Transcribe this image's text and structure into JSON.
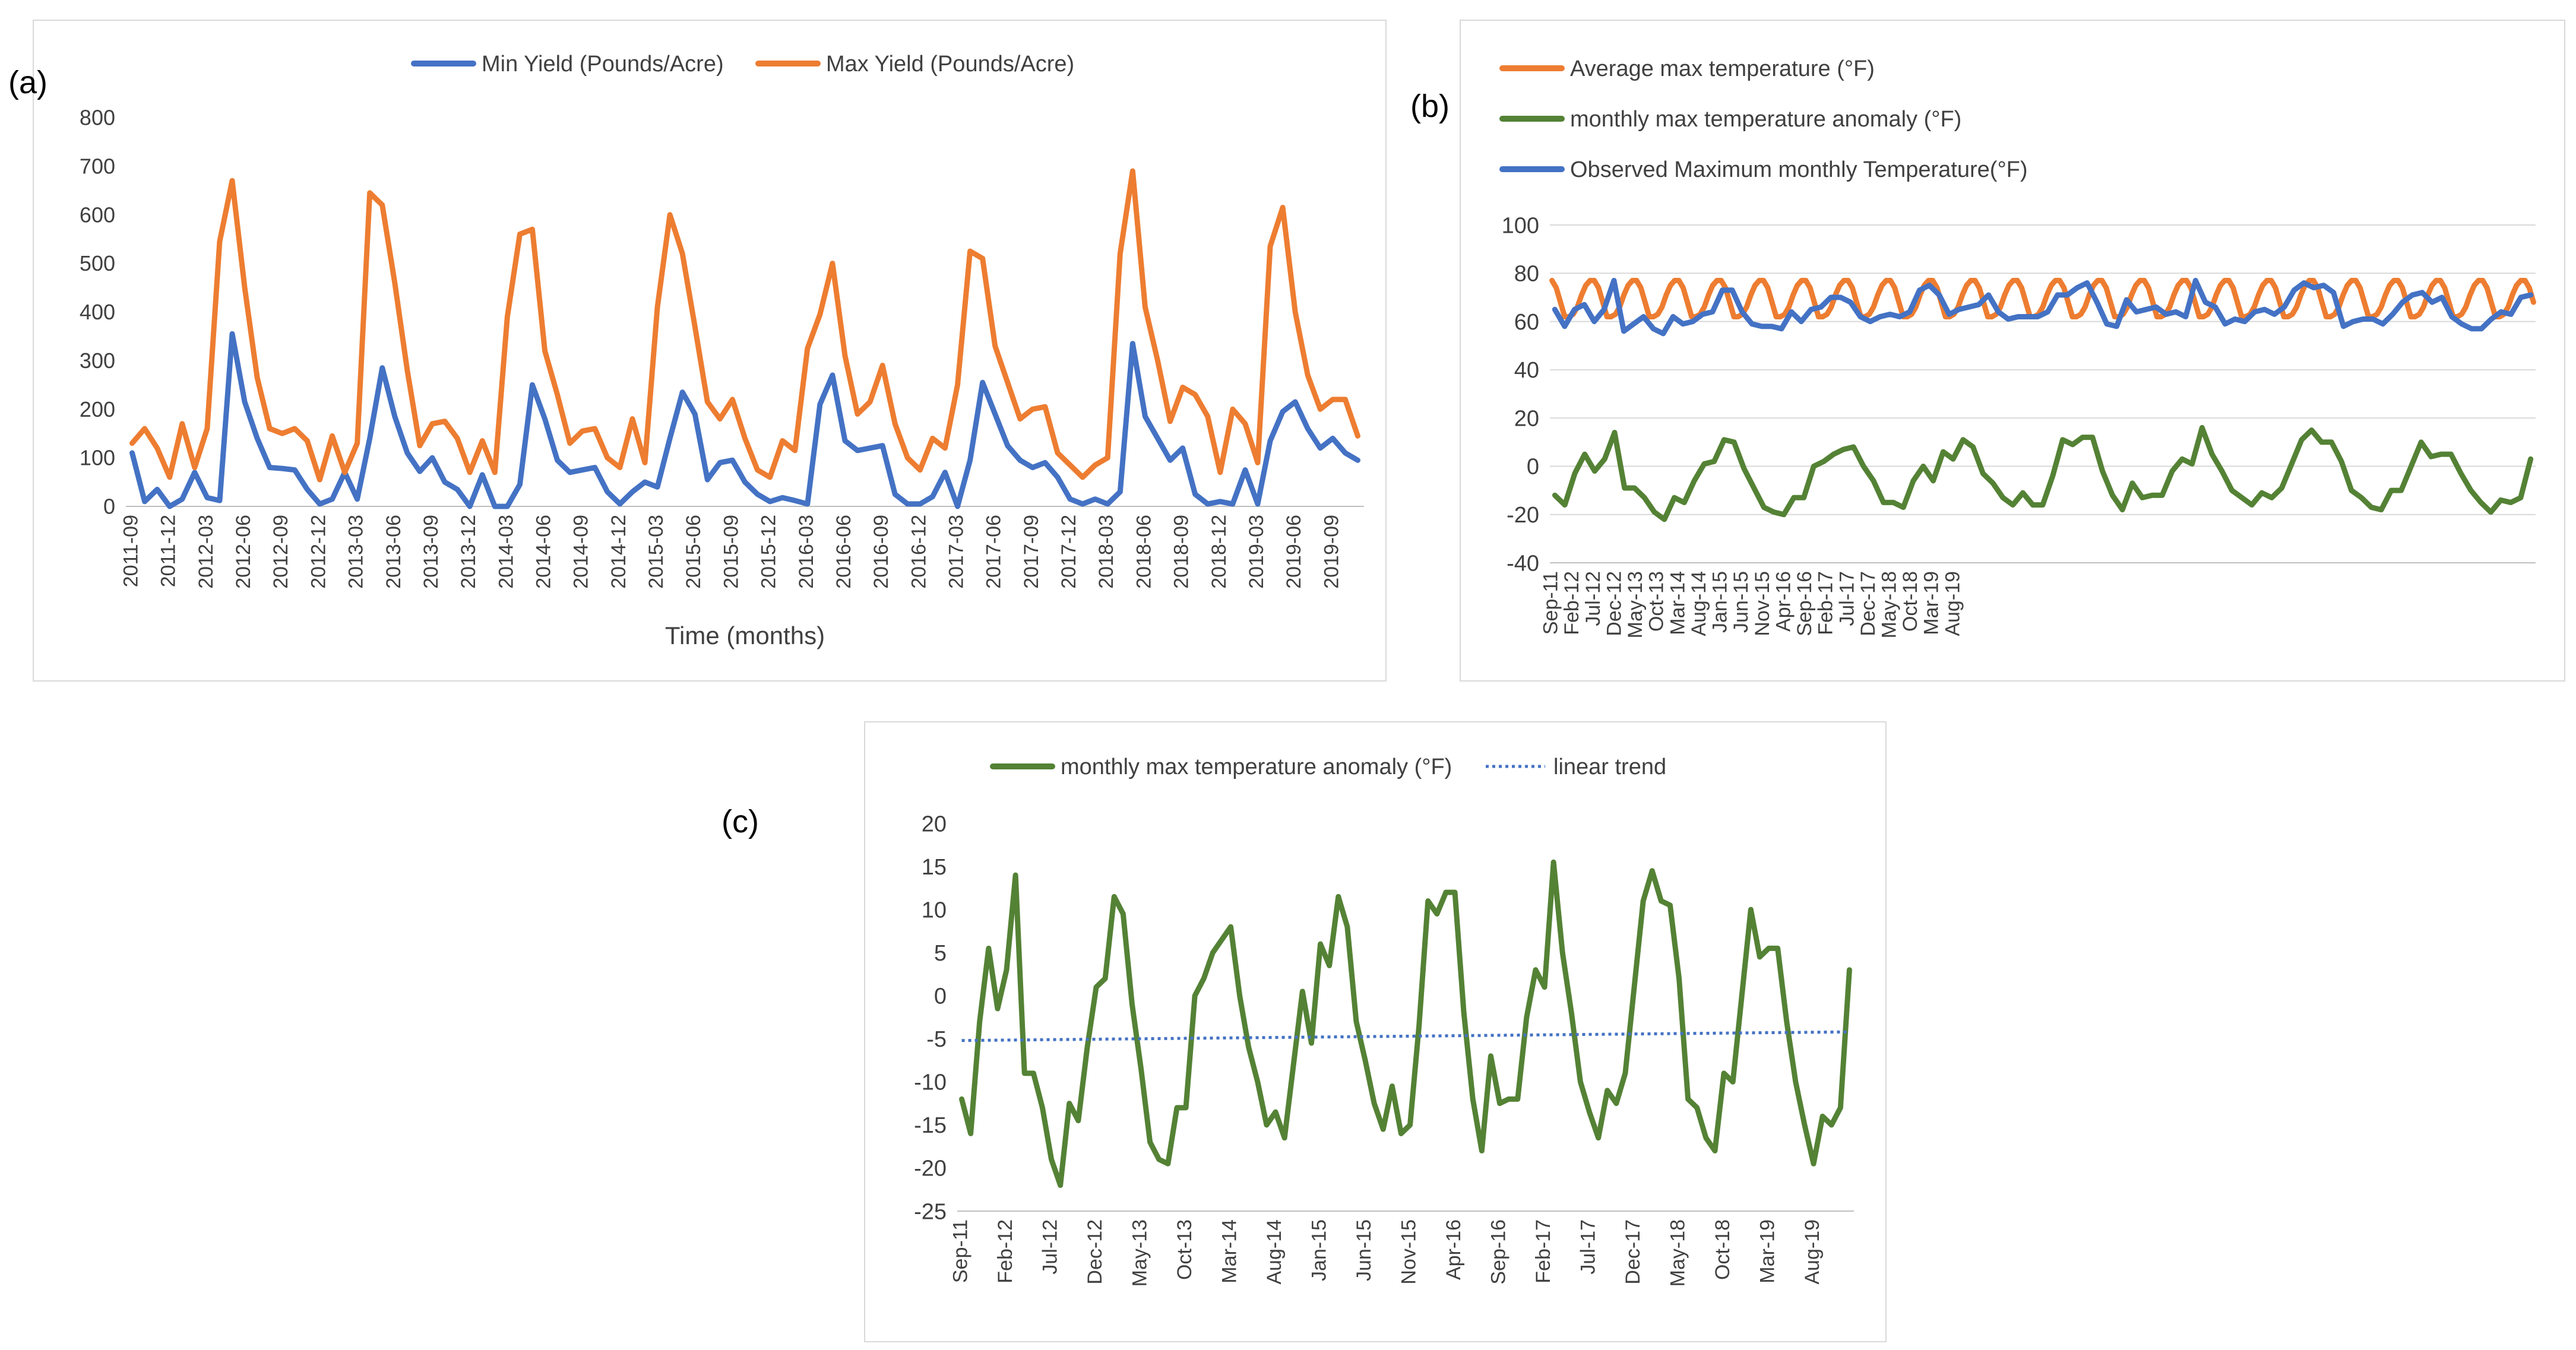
{
  "panels": {
    "a": {
      "label": "(a)"
    },
    "b": {
      "label": "(b)"
    },
    "c": {
      "label": "(c)"
    }
  },
  "chart_data": [
    {
      "id": "a",
      "type": "line",
      "xlabel": "Time (months)",
      "ylabel": "",
      "ylim": [
        0,
        800
      ],
      "yticks": [
        0,
        100,
        200,
        300,
        400,
        500,
        600,
        700,
        800
      ],
      "tick_labels": [
        "2011-09",
        "2011-12",
        "2012-03",
        "2012-06",
        "2012-09",
        "2012-12",
        "2013-03",
        "2013-06",
        "2013-09",
        "2013-12",
        "2014-03",
        "2014-06",
        "2014-09",
        "2014-12",
        "2015-03",
        "2015-06",
        "2015-09",
        "2015-12",
        "2016-03",
        "2016-06",
        "2016-09",
        "2016-12",
        "2017-03",
        "2017-06",
        "2017-09",
        "2017-12",
        "2018-03",
        "2018-06",
        "2018-09",
        "2018-12",
        "2019-03",
        "2019-06",
        "2019-09"
      ],
      "legend_position": "top",
      "grid": false,
      "series": [
        {
          "name": "Min Yield (Pounds/Acre)",
          "color": "#4472c4",
          "values": [
            110,
            10,
            35,
            0,
            15,
            70,
            18,
            12,
            355,
            215,
            140,
            80,
            78,
            75,
            35,
            5,
            15,
            70,
            15,
            140,
            285,
            185,
            110,
            72,
            100,
            50,
            35,
            0,
            65,
            0,
            0,
            45,
            250,
            180,
            95,
            70,
            75,
            80,
            30,
            5,
            30,
            50,
            40,
            140,
            235,
            190,
            55,
            90,
            95,
            50,
            25,
            10,
            18,
            12,
            5,
            210,
            270,
            135,
            115,
            120,
            125,
            25,
            5,
            5,
            20,
            70,
            0,
            95,
            255,
            190,
            125,
            95,
            80,
            90,
            60,
            15,
            5,
            15,
            5,
            30,
            335,
            185,
            140,
            95,
            120,
            25,
            5,
            10,
            5,
            75,
            5,
            135,
            195,
            215,
            160,
            120,
            140,
            110,
            95
          ]
        },
        {
          "name": "Max Yield (Pounds/Acre)",
          "color": "#ed7d31",
          "values": [
            130,
            160,
            120,
            60,
            170,
            80,
            160,
            545,
            670,
            450,
            265,
            160,
            150,
            160,
            135,
            55,
            145,
            70,
            130,
            645,
            620,
            460,
            280,
            125,
            170,
            175,
            140,
            70,
            135,
            70,
            390,
            560,
            570,
            320,
            230,
            130,
            155,
            160,
            100,
            80,
            180,
            90,
            410,
            600,
            520,
            370,
            215,
            180,
            220,
            140,
            75,
            60,
            135,
            115,
            325,
            395,
            500,
            310,
            190,
            215,
            290,
            170,
            100,
            75,
            140,
            120,
            250,
            525,
            510,
            330,
            255,
            180,
            200,
            205,
            110,
            85,
            60,
            85,
            100,
            520,
            690,
            410,
            300,
            175,
            245,
            230,
            185,
            70,
            200,
            170,
            90,
            535,
            615,
            400,
            270,
            200,
            220,
            220,
            145
          ]
        }
      ]
    },
    {
      "id": "b",
      "type": "line",
      "ylim": [
        -40,
        100
      ],
      "yticks": [
        -40,
        -20,
        0,
        20,
        40,
        60,
        80,
        100
      ],
      "tick_labels": [
        "Sep-11",
        "Feb-12",
        "Jul-12",
        "Dec-12",
        "May-13",
        "Oct-13",
        "Mar-14",
        "Aug-14",
        "Jan-15",
        "Jun-15",
        "Nov-15",
        "Apr-16",
        "Sep-16",
        "Feb-17",
        "Jul-17",
        "Dec-17",
        "May-18",
        "Oct-18",
        "Mar-19",
        "Aug-19"
      ],
      "legend_position": "top-left",
      "grid": true,
      "series": [
        {
          "name": "Average max temperature  (°F)",
          "color": "#ed7d31",
          "values": [
            77,
            74,
            68,
            62,
            62,
            63,
            66,
            71,
            75,
            77,
            77,
            74,
            68,
            62,
            62,
            63,
            66,
            71,
            75,
            77,
            77,
            74,
            68,
            62,
            62,
            63,
            66,
            71,
            75,
            77,
            77,
            74,
            68,
            62,
            62,
            63,
            66,
            71,
            75,
            77,
            77,
            74,
            68,
            62,
            62,
            63,
            66,
            71,
            75,
            77,
            77,
            74,
            68,
            62,
            62,
            63,
            66,
            71,
            75,
            77,
            77,
            74,
            68,
            62,
            62,
            63,
            66,
            71,
            75,
            77,
            77,
            74,
            68,
            62,
            62,
            63,
            66,
            71,
            75,
            77,
            77,
            74,
            68,
            62,
            62,
            63,
            66,
            71,
            75,
            77,
            77,
            74,
            68,
            62,
            62,
            63,
            66,
            71,
            75,
            77,
            77,
            74,
            68,
            62,
            62,
            63,
            66,
            71,
            75,
            77,
            77,
            74,
            68,
            62,
            62,
            63,
            66,
            71,
            75,
            77,
            77,
            74,
            68,
            62,
            62,
            63,
            66,
            71,
            75,
            77,
            77,
            74,
            68,
            62,
            62,
            63,
            66,
            71,
            75,
            77,
            77,
            74,
            68,
            62,
            62,
            63,
            66,
            71,
            75,
            77,
            77,
            74,
            68,
            62,
            62,
            63,
            66,
            71,
            75,
            77,
            77,
            74,
            68,
            62,
            62,
            63,
            66,
            71,
            75,
            77,
            77,
            74,
            68,
            62,
            62,
            63,
            66,
            71,
            75,
            77,
            77,
            74,
            68,
            62,
            62,
            63,
            66,
            71,
            75,
            77,
            77,
            74,
            68,
            62,
            62,
            63,
            66,
            71,
            75,
            77,
            77,
            74,
            68,
            62,
            62,
            63,
            66,
            71,
            75,
            77,
            77,
            74,
            68,
            62,
            62,
            63,
            66,
            71,
            75,
            77,
            77,
            74,
            68,
            62,
            62,
            63,
            66,
            71,
            75,
            77,
            77,
            74,
            68
          ]
        },
        {
          "name": "monthly max temperature anomaly  (°F)",
          "color": "#548235",
          "values": [
            -12,
            -16,
            -3,
            5,
            -2,
            3,
            14,
            -9,
            -9,
            -13,
            -19,
            -22,
            -13,
            -15,
            -6,
            1,
            2,
            11,
            10,
            -1,
            -9,
            -17,
            -19,
            -20,
            -13,
            -13,
            0,
            2,
            5,
            7,
            8,
            0,
            -6,
            -15,
            -15,
            -17,
            -6,
            0,
            -6,
            6,
            3,
            11,
            8,
            -3,
            -7,
            -13,
            -16,
            -11,
            -16,
            -16,
            -4,
            11,
            9,
            12,
            12,
            -2,
            -12,
            -18,
            -7,
            -13,
            -12,
            -12,
            -2,
            3,
            1,
            16,
            5,
            -2,
            -10,
            -13,
            -16,
            -11,
            -13,
            -9,
            1,
            11,
            15,
            10,
            10,
            2,
            -10,
            -13,
            -17,
            -18,
            -10,
            -10,
            0,
            10,
            4,
            5,
            5,
            -3,
            -10,
            -15,
            -19,
            -14,
            -15,
            -13,
            3
          ]
        },
        {
          "name": "Observed Maximum monthly  Temperature(°F)",
          "color": "#4472c4",
          "values": [
            65,
            58,
            65,
            67,
            60,
            65,
            77,
            56,
            59,
            62,
            57,
            55,
            62,
            59,
            60,
            63,
            64,
            73,
            73,
            64,
            59,
            58,
            58,
            57,
            64,
            60,
            65,
            66,
            70,
            70,
            68,
            62,
            60,
            62,
            63,
            62,
            64,
            73,
            75,
            71,
            63,
            65,
            66,
            67,
            71,
            64,
            61,
            62,
            62,
            62,
            64,
            71,
            71,
            74,
            76,
            68,
            59,
            58,
            69,
            64,
            65,
            66,
            63,
            64,
            62,
            77,
            68,
            66,
            59,
            61,
            60,
            64,
            65,
            63,
            66,
            73,
            76,
            74,
            75,
            72,
            58,
            60,
            61,
            61,
            59,
            63,
            68,
            71,
            72,
            68,
            70,
            62,
            59,
            57,
            57,
            61,
            64,
            63,
            70,
            71
          ]
        }
      ]
    },
    {
      "id": "c",
      "type": "line",
      "ylim": [
        -25,
        20
      ],
      "yticks": [
        -25,
        -20,
        -15,
        -10,
        -5,
        0,
        5,
        10,
        15,
        20
      ],
      "tick_labels": [
        "Sep-11",
        "Feb-12",
        "Jul-12",
        "Dec-12",
        "May-13",
        "Oct-13",
        "Mar-14",
        "Aug-14",
        "Jan-15",
        "Jun-15",
        "Nov-15",
        "Apr-16",
        "Sep-16",
        "Feb-17",
        "Jul-17",
        "Dec-17",
        "May-18",
        "Oct-18",
        "Mar-19",
        "Aug-19"
      ],
      "legend_position": "top",
      "grid": false,
      "series": [
        {
          "name": "monthly max temperature anomaly  (°F)",
          "color": "#548235",
          "values": [
            -12,
            -16,
            -3,
            5.5,
            -1.5,
            3,
            14,
            -9,
            -9,
            -13,
            -19,
            -22,
            -12.5,
            -14.5,
            -6,
            1,
            2,
            11.5,
            9.5,
            -1,
            -8.5,
            -17,
            -19,
            -19.5,
            -13,
            -13,
            0,
            2,
            5,
            6.5,
            8,
            0,
            -6,
            -10,
            -15,
            -13.5,
            -16.5,
            -8,
            0.5,
            -5.5,
            6,
            3.5,
            11.5,
            8,
            -3,
            -7.5,
            -12.5,
            -15.5,
            -10.5,
            -16,
            -15,
            -3.5,
            11,
            9.5,
            12,
            12,
            -2,
            -12,
            -18,
            -7,
            -12.5,
            -12,
            -12,
            -2.5,
            3,
            1,
            15.5,
            5,
            -2,
            -10,
            -13.5,
            -16.5,
            -11,
            -12.5,
            -9,
            1,
            11,
            14.5,
            11,
            10.5,
            2,
            -12,
            -13,
            -16.5,
            -18,
            -9,
            -10,
            0,
            10,
            4.5,
            5.5,
            5.5,
            -3,
            -10,
            -15,
            -19.5,
            -14,
            -15,
            -13,
            3
          ]
        },
        {
          "name": "linear trend",
          "color": "#4472c4",
          "dotted": true,
          "values": [
            -5.2,
            -4.2
          ]
        }
      ]
    }
  ]
}
